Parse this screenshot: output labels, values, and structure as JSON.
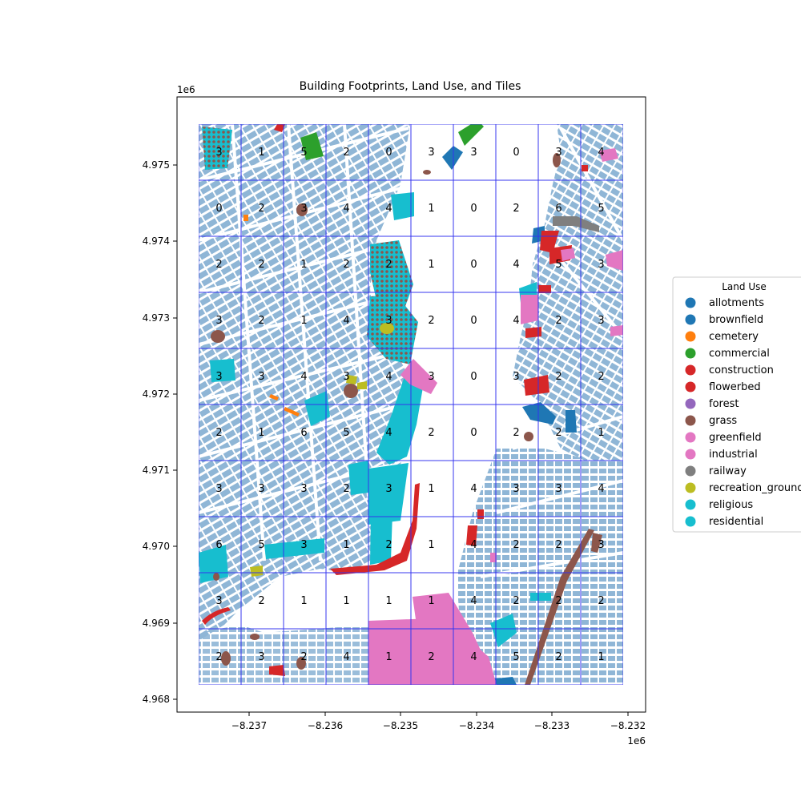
{
  "figure": {
    "title": "Building Footprints, Land Use, and Tiles",
    "x_exponent": "1e6",
    "y_exponent": "1e6"
  },
  "axes": {
    "x_ticks": [
      "−8.237",
      "−8.236",
      "−8.235",
      "−8.234",
      "−8.233",
      "−8.232"
    ],
    "y_ticks": [
      "4.975",
      "4.974",
      "4.973",
      "4.972",
      "4.971",
      "4.970",
      "4.969",
      "4.968"
    ]
  },
  "legend": {
    "title": "Land Use",
    "placement": "right",
    "entries": [
      {
        "label": "allotments",
        "color": "#1f77b4"
      },
      {
        "label": "brownfield",
        "color": "#1f77b4"
      },
      {
        "label": "cemetery",
        "color": "#ff7f0e"
      },
      {
        "label": "commercial",
        "color": "#2ca02c"
      },
      {
        "label": "construction",
        "color": "#d62728"
      },
      {
        "label": "flowerbed",
        "color": "#d62728"
      },
      {
        "label": "forest",
        "color": "#9467bd"
      },
      {
        "label": "grass",
        "color": "#8c564b"
      },
      {
        "label": "greenfield",
        "color": "#e377c2"
      },
      {
        "label": "industrial",
        "color": "#e377c2"
      },
      {
        "label": "railway",
        "color": "#7f7f7f"
      },
      {
        "label": "recreation_ground",
        "color": "#bcbd22"
      },
      {
        "label": "religious",
        "color": "#17becf"
      },
      {
        "label": "residential",
        "color": "#17becf"
      }
    ]
  },
  "tiles": {
    "grid_color": "#3333ee",
    "counts": [
      [
        "3",
        "1",
        "5",
        "2",
        "0",
        "3",
        "3",
        "0",
        "3",
        "4"
      ],
      [
        "0",
        "2",
        "3",
        "4",
        "4",
        "1",
        "0",
        "2",
        "6",
        "5"
      ],
      [
        "2",
        "2",
        "1",
        "2",
        "2",
        "1",
        "0",
        "4",
        "5",
        "3"
      ],
      [
        "3",
        "2",
        "1",
        "4",
        "3",
        "2",
        "0",
        "4",
        "2",
        "3"
      ],
      [
        "3",
        "3",
        "4",
        "3",
        "4",
        "3",
        "0",
        "3",
        "2",
        "2"
      ],
      [
        "2",
        "1",
        "6",
        "5",
        "4",
        "2",
        "0",
        "2",
        "2",
        "1"
      ],
      [
        "3",
        "3",
        "3",
        "2",
        "3",
        "1",
        "4",
        "3",
        "3",
        "4"
      ],
      [
        "6",
        "5",
        "3",
        "1",
        "2",
        "1",
        "4",
        "2",
        "2",
        "3"
      ],
      [
        "3",
        "2",
        "1",
        "1",
        "1",
        "1",
        "4",
        "2",
        "2",
        "2"
      ],
      [
        "2",
        "3",
        "2",
        "4",
        "1",
        "2",
        "4",
        "5",
        "2",
        "1"
      ]
    ]
  },
  "colors": {
    "building": "#8fb6d6"
  }
}
